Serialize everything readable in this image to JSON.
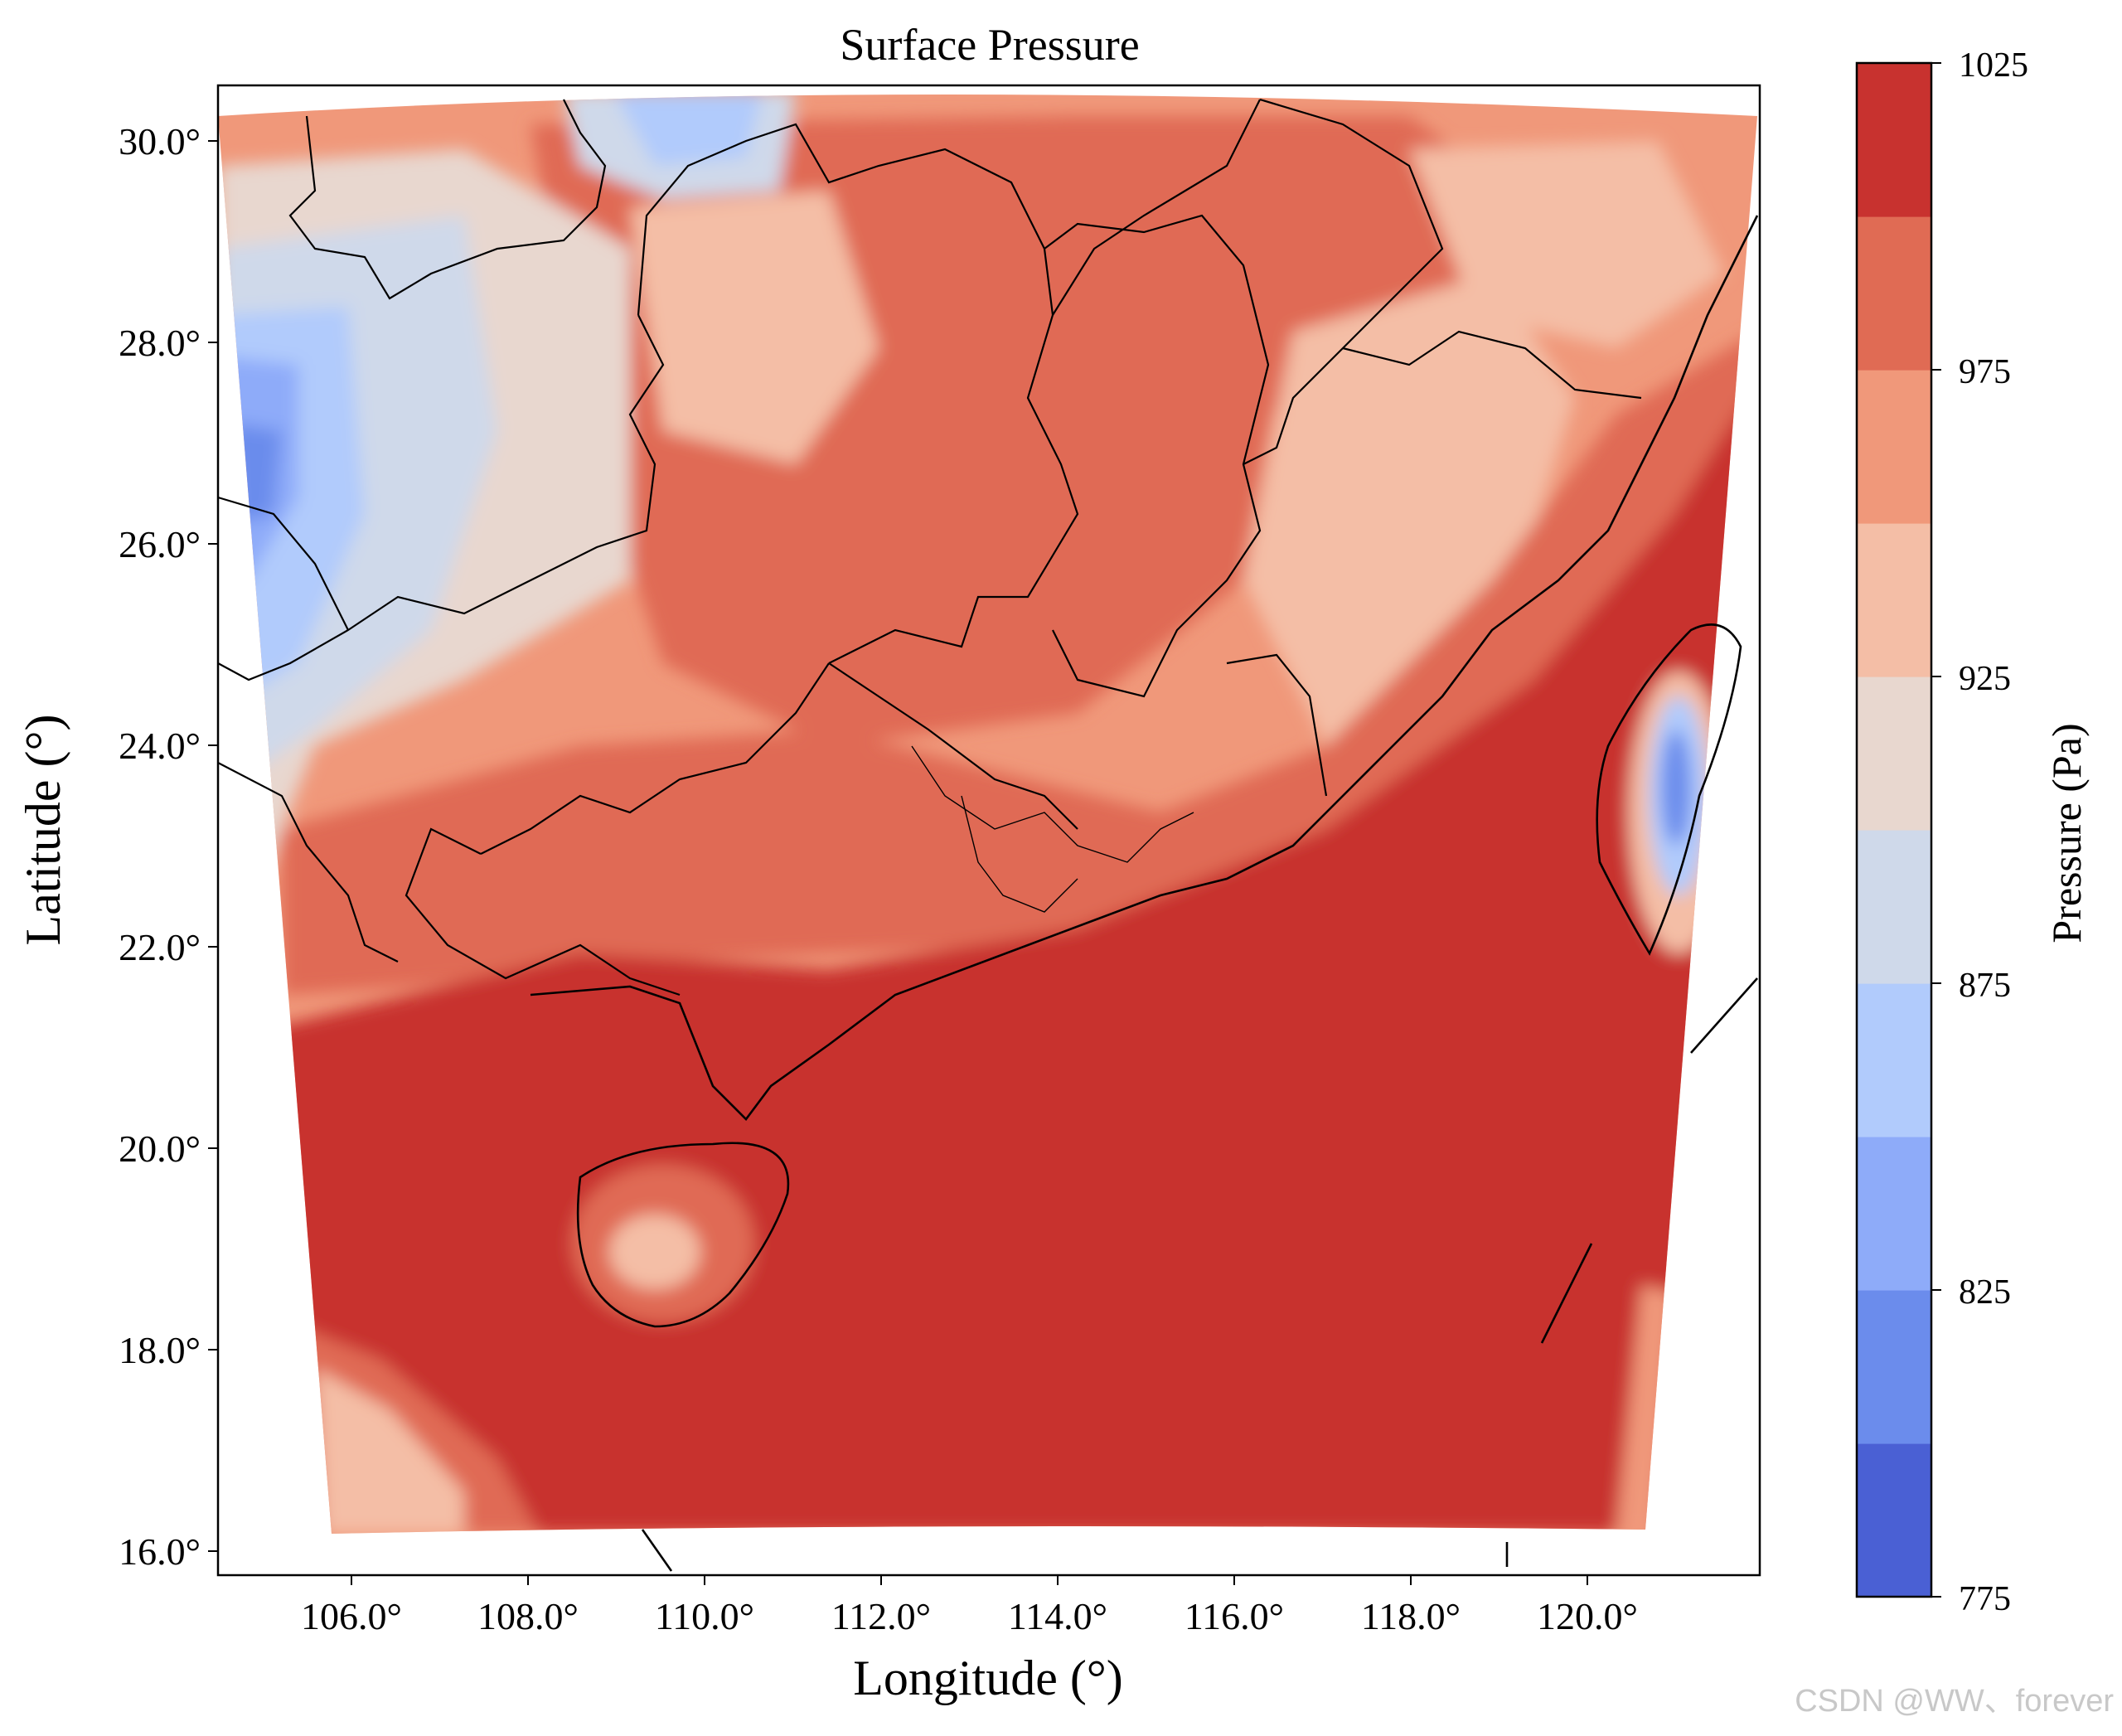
{
  "title": "Surface Pressure",
  "xlabel": "Longitude (°)",
  "ylabel": "Latitude (°)",
  "xticks": [
    "106.0°",
    "108.0°",
    "110.0°",
    "112.0°",
    "114.0°",
    "116.0°",
    "118.0°",
    "120.0°"
  ],
  "yticks": [
    "30.0°",
    "28.0°",
    "26.0°",
    "24.0°",
    "22.0°",
    "20.0°",
    "18.0°",
    "16.0°"
  ],
  "colorbar": {
    "label": "Pressure (Pa)",
    "ticks": [
      "1025",
      "975",
      "925",
      "875",
      "825",
      "775"
    ],
    "levels": [
      775,
      800,
      825,
      850,
      875,
      900,
      925,
      950,
      975,
      1000,
      1025
    ],
    "colors": [
      "#4a60d4",
      "#6b8cec",
      "#8eabf9",
      "#b1cbfc",
      "#cfd9ea",
      "#e8d7cf",
      "#f4bea6",
      "#f0987a",
      "#e06b54",
      "#c8322f"
    ]
  },
  "watermark": "CSDN @WW、forever",
  "chart_data": {
    "type": "filled-contour map",
    "variable": "Surface Pressure",
    "units": "Pa",
    "lon_range": [
      104.5,
      122.0
    ],
    "lat_range": [
      15.8,
      30.6
    ],
    "contour_levels": [
      775,
      800,
      825,
      850,
      875,
      900,
      925,
      950,
      975,
      1000,
      1025
    ],
    "colormap": "coolwarm",
    "features": [
      "coastlines",
      "province borders",
      "Hainan island",
      "Taiwan island"
    ]
  }
}
